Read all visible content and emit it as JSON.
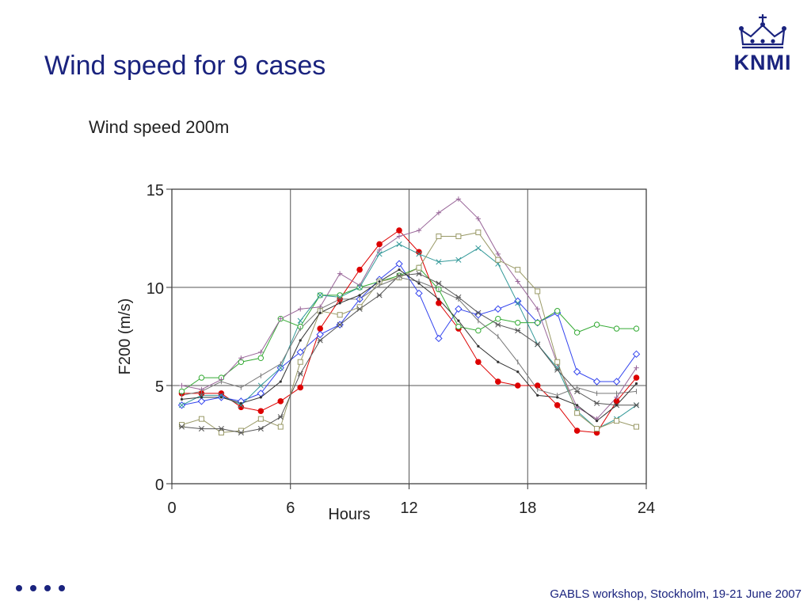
{
  "slide": {
    "title": "Wind speed for 9 cases",
    "logo_text": "KNMI",
    "logo_icon": "crown-icon",
    "footer": "GABLS workshop, Stockholm, 19-21 June 2007",
    "brand_color": "#1a237e"
  },
  "chart_data": {
    "type": "line",
    "title": "Wind speed 200m",
    "xlabel": "Hours",
    "ylabel": "F200 (m/s)",
    "xlim": [
      0,
      24
    ],
    "ylim": [
      0,
      15
    ],
    "xticks": [
      0,
      6,
      12,
      18,
      24
    ],
    "yticks": [
      0,
      5,
      10,
      15
    ],
    "grid": true,
    "x": [
      0.5,
      1.5,
      2.5,
      3.5,
      4.5,
      5.5,
      6.5,
      7.5,
      8.5,
      9.5,
      10.5,
      11.5,
      12.5,
      13.5,
      14.5,
      15.5,
      16.5,
      17.5,
      18.5,
      19.5,
      20.5,
      21.5,
      22.5,
      23.5
    ],
    "series": [
      {
        "color": "#dd0000",
        "marker": "filled-circle",
        "values": [
          4.6,
          4.6,
          4.6,
          3.9,
          3.7,
          4.2,
          4.9,
          7.9,
          9.4,
          10.9,
          12.2,
          12.9,
          11.8,
          9.2,
          7.9,
          6.2,
          5.2,
          5.0,
          5.0,
          4.0,
          2.7,
          2.6,
          4.2,
          5.4
        ]
      },
      {
        "color": "#3344ee",
        "marker": "diamond",
        "values": [
          4.0,
          4.2,
          4.4,
          4.2,
          4.6,
          5.9,
          6.7,
          7.6,
          8.1,
          9.4,
          10.4,
          11.2,
          9.7,
          7.4,
          8.9,
          8.6,
          8.9,
          9.3,
          8.2,
          8.7,
          5.7,
          5.2,
          5.2,
          6.6
        ]
      },
      {
        "color": "#33aa33",
        "marker": "circle",
        "values": [
          4.7,
          5.4,
          5.4,
          6.2,
          6.4,
          8.4,
          8.0,
          9.6,
          9.6,
          10.0,
          10.3,
          10.6,
          11.0,
          9.9,
          8.0,
          7.8,
          8.4,
          8.2,
          8.2,
          8.8,
          7.7,
          8.1,
          7.9,
          7.9
        ]
      },
      {
        "color": "#996699",
        "marker": "plus",
        "values": [
          5.0,
          4.8,
          5.3,
          6.4,
          6.7,
          8.4,
          8.9,
          9.0,
          10.7,
          10.1,
          11.9,
          12.6,
          12.9,
          13.8,
          14.5,
          13.5,
          11.7,
          10.3,
          8.9,
          6.1,
          3.9,
          3.3,
          4.4,
          5.9
        ]
      },
      {
        "color": "#339999",
        "marker": "cross",
        "values": [
          4.0,
          4.5,
          4.5,
          4.0,
          5.0,
          5.9,
          8.3,
          9.6,
          9.5,
          10.0,
          11.7,
          12.2,
          11.7,
          11.3,
          11.4,
          12.0,
          11.2,
          9.2,
          7.1,
          5.9,
          3.7,
          2.8,
          3.3,
          4.0
        ]
      },
      {
        "color": "#999966",
        "marker": "square",
        "values": [
          3.0,
          3.3,
          2.6,
          2.7,
          3.3,
          2.9,
          6.2,
          8.8,
          8.6,
          9.0,
          10.3,
          10.5,
          11.0,
          12.6,
          12.6,
          12.8,
          11.4,
          10.9,
          9.8,
          6.2,
          3.6,
          2.8,
          3.2,
          2.9
        ]
      },
      {
        "color": "#555555",
        "marker": "asterisk",
        "values": [
          2.9,
          2.8,
          2.8,
          2.6,
          2.8,
          3.4,
          5.6,
          7.3,
          8.1,
          8.9,
          9.6,
          10.6,
          10.7,
          10.2,
          9.5,
          8.7,
          8.1,
          7.8,
          7.1,
          5.8,
          4.7,
          4.1,
          4.0,
          4.0
        ]
      },
      {
        "color": "#777777",
        "marker": "tick",
        "values": [
          4.5,
          4.7,
          5.2,
          4.9,
          5.5,
          6.1,
          7.9,
          8.9,
          9.4,
          9.4,
          10.1,
          10.5,
          10.3,
          9.9,
          9.4,
          8.3,
          7.5,
          6.2,
          4.8,
          4.5,
          4.9,
          4.6,
          4.6,
          4.7
        ]
      },
      {
        "color": "#333333",
        "marker": "dot",
        "values": [
          4.3,
          4.4,
          4.4,
          4.1,
          4.4,
          5.2,
          7.3,
          8.7,
          9.2,
          9.6,
          10.3,
          10.9,
          10.2,
          9.4,
          8.3,
          7.0,
          6.2,
          5.7,
          4.5,
          4.4,
          4.0,
          3.2,
          4.0,
          5.1
        ]
      }
    ]
  }
}
